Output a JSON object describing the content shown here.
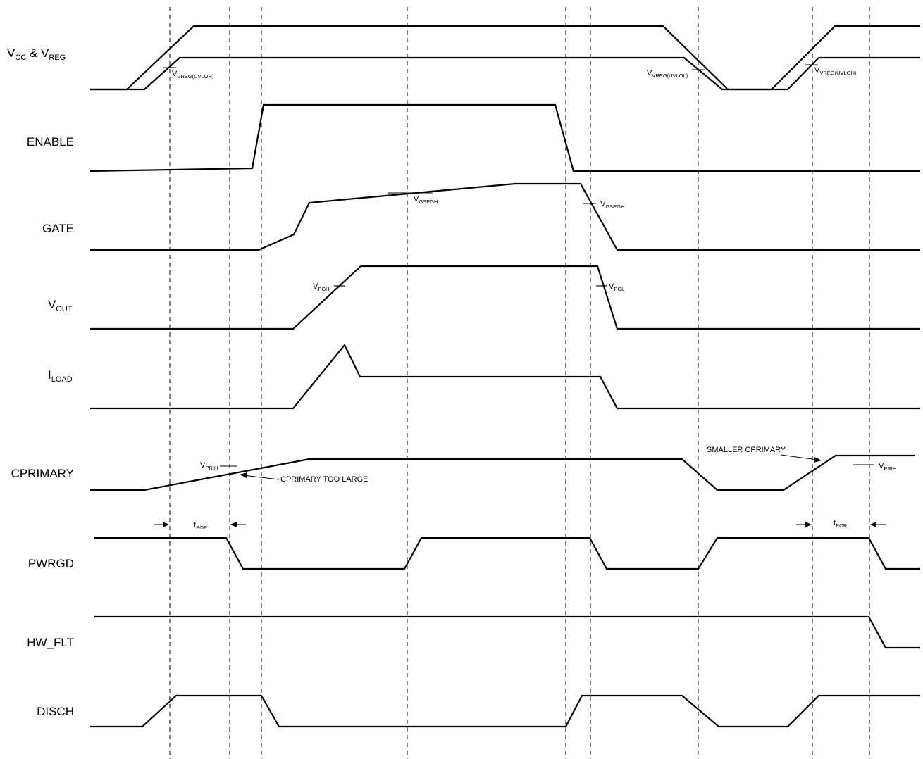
{
  "signals": {
    "vcc": {
      "main": "V",
      "sub1": "CC",
      "mid": " & V",
      "sub2": "REG"
    },
    "enable": "ENABLE",
    "gate": "GATE",
    "vout": {
      "main": "V",
      "sub": "OUT"
    },
    "iload": {
      "main": "I",
      "sub": "LOAD"
    },
    "cprimary": "CPRIMARY",
    "pwrgd": "PWRGD",
    "hwflt": "HW_FLT",
    "disch": "DISCH"
  },
  "annotations": {
    "vreg_uvloh_1": {
      "main": "V",
      "sub": "VREG(UVLOH)"
    },
    "vreg_uvlol": {
      "main": "V",
      "sub": "VREG(UVLOL)"
    },
    "vreg_uvloh_2": {
      "main": "V",
      "sub": "VREG(UVLOH)"
    },
    "vgspgh_1": {
      "main": "V",
      "sub": "GSPGH"
    },
    "vgspgh_2": {
      "main": "V",
      "sub": "GSPGH"
    },
    "vpgh": {
      "main": "V",
      "sub": "PGH"
    },
    "vpgl": {
      "main": "V",
      "sub": "PGL"
    },
    "vprih_1": {
      "main": "V",
      "sub": "PRIH"
    },
    "vprih_2": {
      "main": "V",
      "sub": "PRIH"
    },
    "cprimary_too_large": "CPRIMARY TOO LARGE",
    "smaller_cprimary": "SMALLER CPRIMARY",
    "tpor_1": {
      "main": "t",
      "sub": "POR"
    },
    "tpor_2": {
      "main": "t",
      "sub": "POR"
    }
  }
}
